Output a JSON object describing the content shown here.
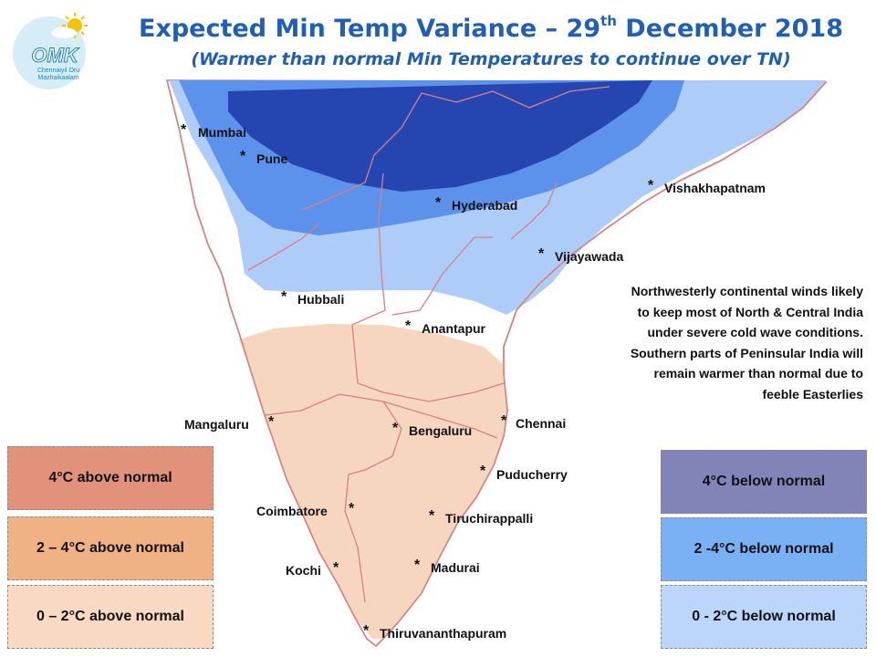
{
  "title_main": "Expected Min Temp Variance – 29",
  "title_sup": "th",
  "title_end": " December 2018",
  "subtitle": "(Warmer than normal Min Temperatures to continue over TN)",
  "logo": {
    "text": "OMK",
    "caption_line1": "Chennaiyil Oru",
    "caption_line2": "Mazhaikaalam"
  },
  "cities": [
    "Mumbai",
    "Pune",
    "Hyderabad",
    "Vishakhapatnam",
    "Vijayawada",
    "Hubbali",
    "Anantapur",
    "Mangaluru",
    "Bengaluru",
    "Chennai",
    "Puducherry",
    "Coimbatore",
    "Tiruchirappalli",
    "Kochi",
    "Madurai",
    "Thiruvananthapuram"
  ],
  "note_lines": [
    "Northwesterly continental winds likely",
    "to keep most of North & Central India",
    "under severe cold wave conditions.",
    "Southern parts of Peninsular India will",
    "remain warmer than normal due to",
    "feeble Easterlies"
  ],
  "legend_warm": [
    {
      "label": "4°C above normal",
      "color": "#e2927a"
    },
    {
      "label": "2 – 4°C above normal",
      "color": "#f0b285"
    },
    {
      "label": "0 – 2°C above normal",
      "color": "#f9d9c2"
    }
  ],
  "legend_cold": [
    {
      "label": "4°C  below normal",
      "color": "#8284b8"
    },
    {
      "label": "2 -4°C below normal",
      "color": "#79b1f4"
    },
    {
      "label": "0 - 2°C below normal",
      "color": "#bcd5fb"
    }
  ],
  "map_colors": {
    "land_outline": "#d98080",
    "cold_light": "#a9c9f8",
    "cold_mid": "#5c92ec",
    "cold_dark": "#2545b0",
    "warm_light": "#f6d6bf"
  }
}
